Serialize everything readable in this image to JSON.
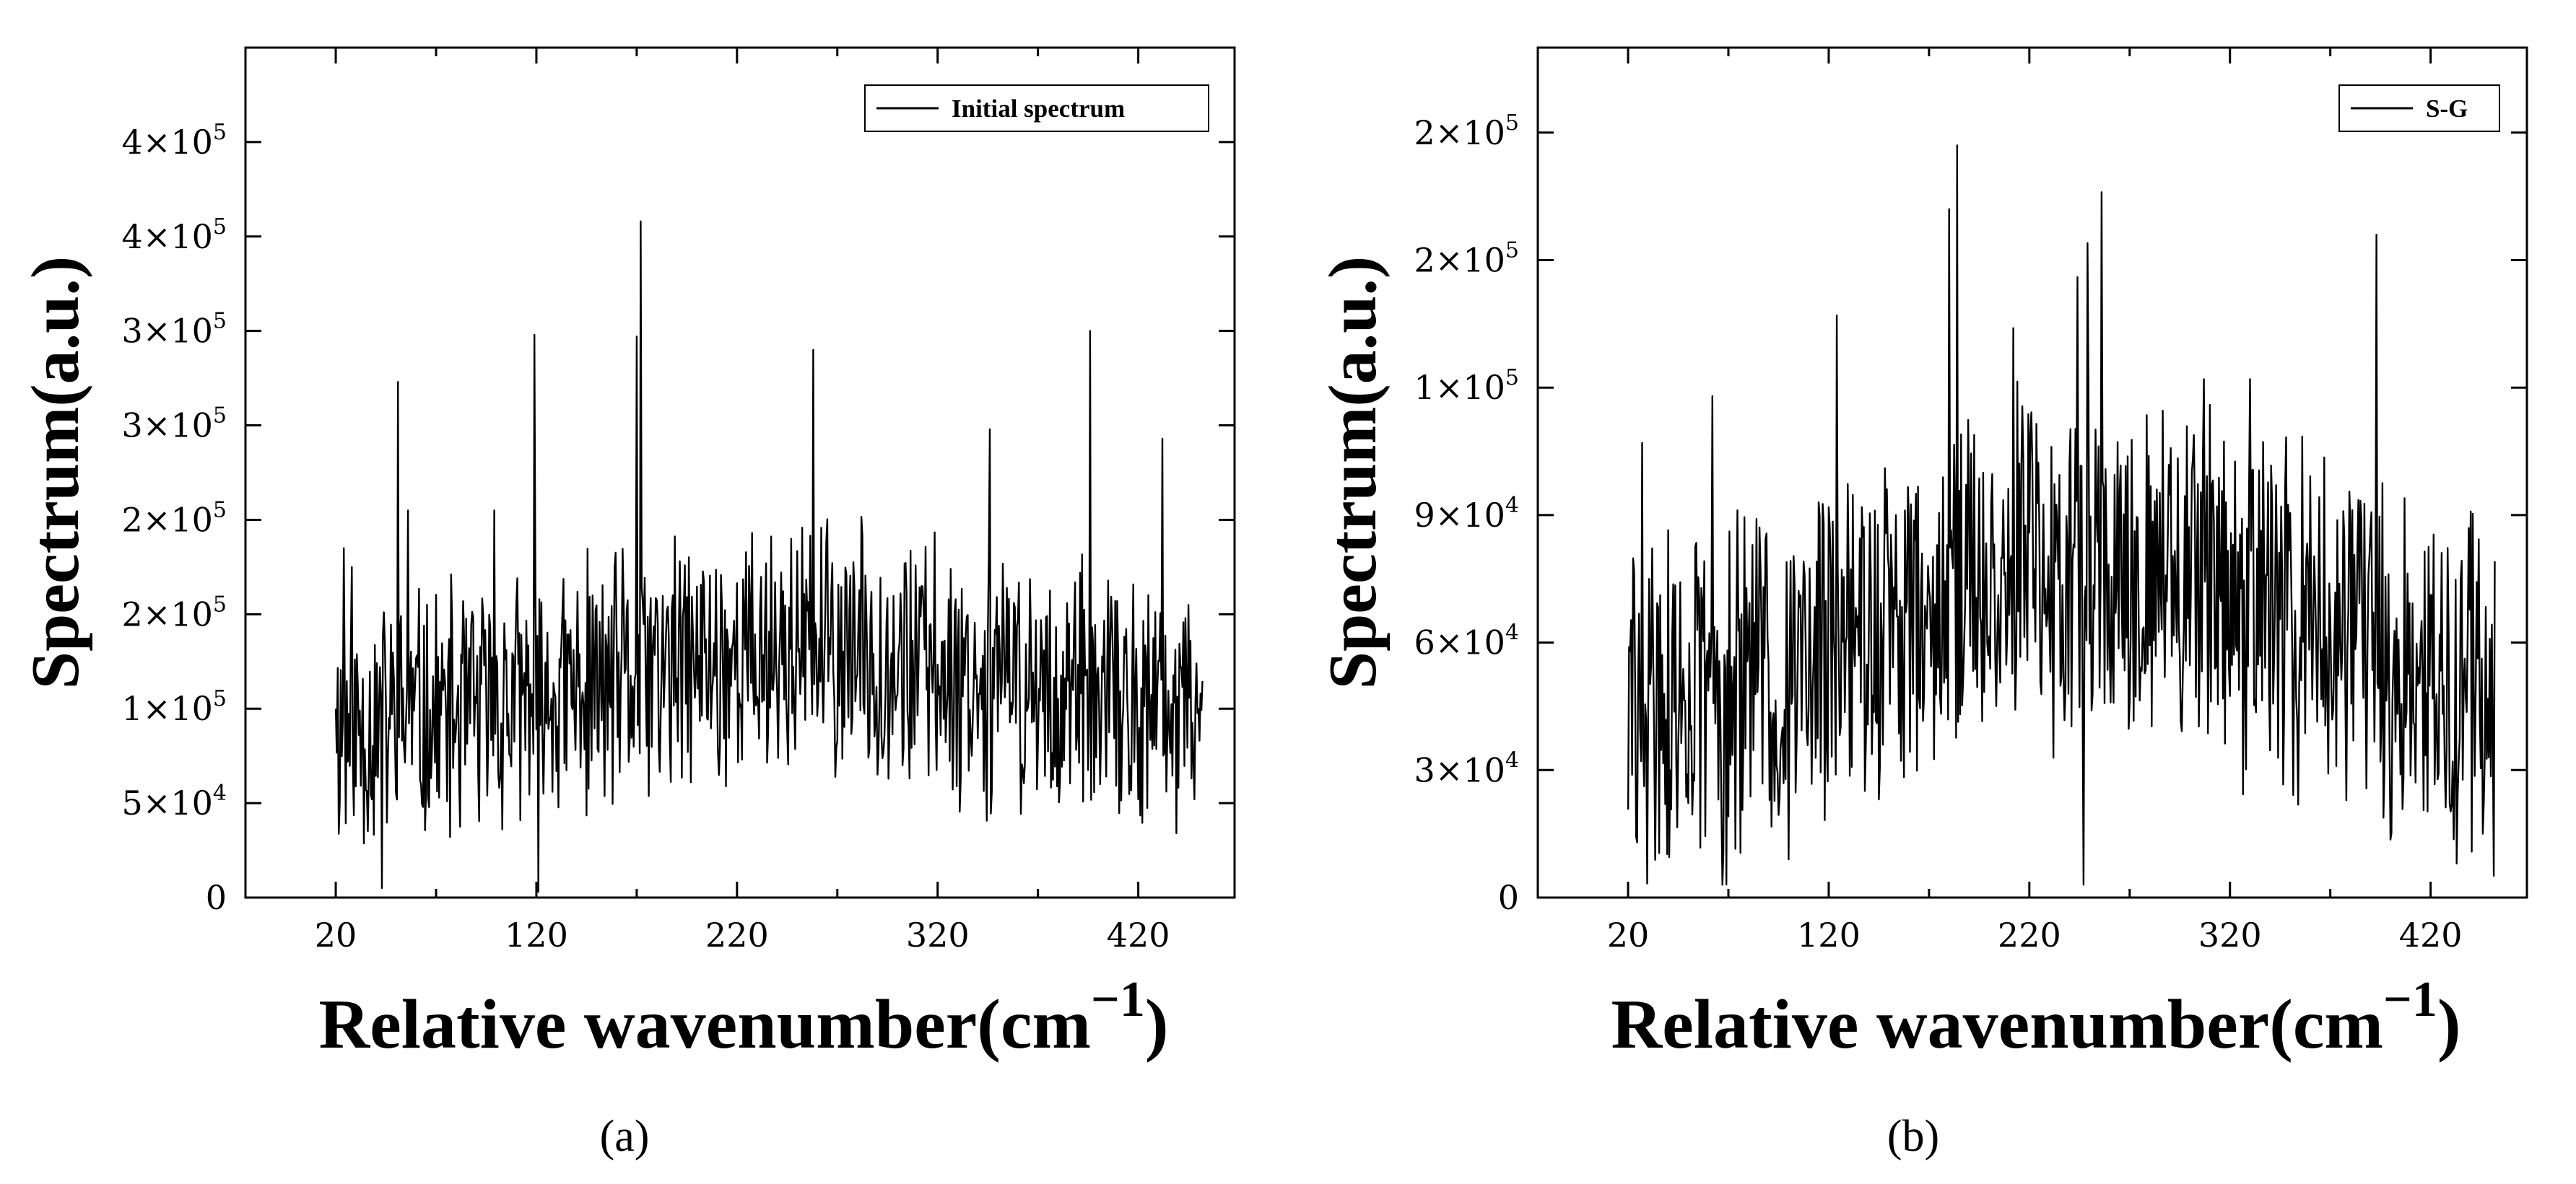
{
  "chart_data": [
    {
      "type": "line",
      "panel_label": "(a)",
      "title": "",
      "xlabel": "Relative wavenumber(cm",
      "xlabel_superscript": "−1",
      "xlabel_close": ")",
      "ylabel": "Spectrum(a.u.)",
      "xlim": [
        -25,
        468
      ],
      "ylim": [
        0,
        450000
      ],
      "x_ticks": [
        20,
        120,
        220,
        320,
        420
      ],
      "y_ticks": [
        {
          "value": 0,
          "label": "0"
        },
        {
          "value": 50000,
          "mant": "5",
          "exp": "4"
        },
        {
          "value": 100000,
          "mant": "1",
          "exp": "5"
        },
        {
          "value": 150000,
          "mant": "2",
          "exp": "5"
        },
        {
          "value": 200000,
          "mant": "2",
          "exp": "5"
        },
        {
          "value": 250000,
          "mant": "3",
          "exp": "5"
        },
        {
          "value": 300000,
          "mant": "3",
          "exp": "5"
        },
        {
          "value": 350000,
          "mant": "4",
          "exp": "5"
        },
        {
          "value": 400000,
          "mant": "4",
          "exp": "5"
        }
      ],
      "legend": {
        "label": "Initial spectrum",
        "position": "top-right"
      },
      "series": [
        {
          "name": "Initial spectrum",
          "generator": {
            "x_start": 20,
            "x_end": 452,
            "step": 0.5,
            "seed": 11,
            "base": 88000,
            "hump": 42000,
            "noise": 78000,
            "ymin": 2000,
            "ymax": 248000
          },
          "points": [
            [
              20,
              100000
            ],
            [
              24,
              185000
            ],
            [
              28,
              175000
            ],
            [
              51,
              273000
            ],
            [
              56,
              205000
            ],
            [
              99,
              205000
            ],
            [
              119,
              298000
            ],
            [
              170,
              297000
            ],
            [
              172,
              358000
            ],
            [
              258,
              290000
            ],
            [
              346,
              248000
            ],
            [
              396,
              300000
            ],
            [
              432,
              243000
            ],
            [
              121,
              3000
            ],
            [
              43,
              5000
            ]
          ]
        }
      ]
    },
    {
      "type": "line",
      "panel_label": "(b)",
      "title": "",
      "xlabel": "Relative wavenumber(cm",
      "xlabel_superscript": "−1",
      "xlabel_close": ")",
      "ylabel": "Spectrum(a.u.)",
      "xlim": [
        -25,
        468
      ],
      "ylim": [
        0,
        200000
      ],
      "x_ticks": [
        20,
        120,
        220,
        320,
        420
      ],
      "y_ticks": [
        {
          "value": 0,
          "label": "0"
        },
        {
          "value": 30000,
          "mant": "3",
          "exp": "4"
        },
        {
          "value": 60000,
          "mant": "6",
          "exp": "4"
        },
        {
          "value": 90000,
          "mant": "9",
          "exp": "4"
        },
        {
          "value": 120000,
          "mant": "1",
          "exp": "5"
        },
        {
          "value": 150000,
          "mant": "2",
          "exp": "5"
        },
        {
          "value": 180000,
          "mant": "2",
          "exp": "5"
        }
      ],
      "legend": {
        "label": "S-G",
        "position": "top-right"
      },
      "series": [
        {
          "name": "S-G",
          "generator": {
            "x_start": 20,
            "x_end": 452,
            "step": 0.5,
            "seed": 29,
            "base": 42000,
            "hump": 38000,
            "noise": 48000,
            "ymin": 3000,
            "ymax": 122000
          },
          "points": [
            [
              27,
              107000
            ],
            [
              62,
              118000
            ],
            [
              124,
              137000
            ],
            [
              180,
              162000
            ],
            [
              184,
              177000
            ],
            [
              212,
              134000
            ],
            [
              244,
              146000
            ],
            [
              249,
              154000
            ],
            [
              256,
              166000
            ],
            [
              330,
              122000
            ],
            [
              393,
              156000
            ],
            [
              247,
              3000
            ],
            [
              433,
              8000
            ]
          ]
        }
      ]
    }
  ]
}
